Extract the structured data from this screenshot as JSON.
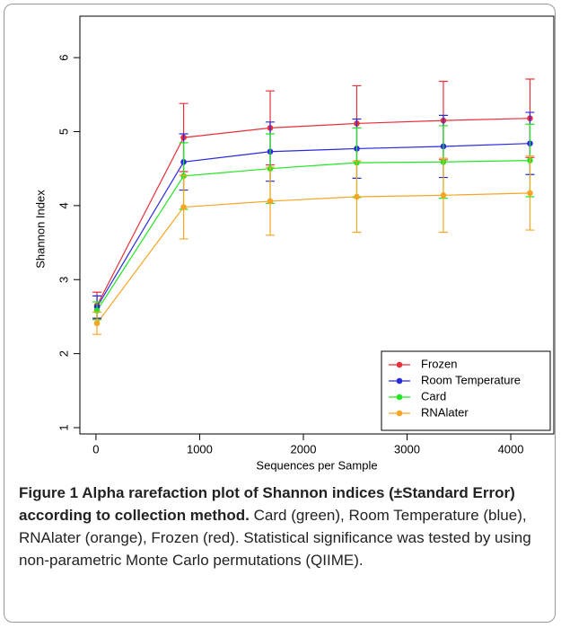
{
  "chart_data": {
    "type": "line",
    "xlabel": "Sequences per Sample",
    "ylabel": "Shannon Index",
    "x": [
      10,
      845,
      1680,
      2515,
      3350,
      4185
    ],
    "xlim": [
      -155,
      4415
    ],
    "xticks": [
      0,
      1000,
      2000,
      3000,
      4000
    ],
    "ylim": [
      0.915,
      6.56
    ],
    "yticks": [
      1,
      2,
      3,
      4,
      5,
      6
    ],
    "legend": "bottom-right",
    "series": [
      {
        "name": "Frozen",
        "color": "#e8303a",
        "values": [
          2.65,
          4.92,
          5.05,
          5.11,
          5.15,
          5.18
        ],
        "errors": [
          0.18,
          0.46,
          0.5,
          0.51,
          0.53,
          0.53
        ]
      },
      {
        "name": "Room Temperature",
        "color": "#2a2adf",
        "values": [
          2.63,
          4.59,
          4.73,
          4.77,
          4.8,
          4.84
        ],
        "errors": [
          0.15,
          0.38,
          0.4,
          0.4,
          0.42,
          0.42
        ]
      },
      {
        "name": "Card",
        "color": "#22e622",
        "values": [
          2.58,
          4.4,
          4.5,
          4.58,
          4.59,
          4.61
        ],
        "errors": [
          0.12,
          0.45,
          0.47,
          0.47,
          0.49,
          0.49
        ]
      },
      {
        "name": "RNAlater",
        "color": "#f5a623",
        "values": [
          2.41,
          3.98,
          4.06,
          4.12,
          4.14,
          4.17
        ],
        "errors": [
          0.15,
          0.43,
          0.46,
          0.48,
          0.5,
          0.5
        ]
      }
    ]
  },
  "caption": {
    "title": "Figure 1 Alpha rarefaction plot of Shannon indices (±Standard Error) according to collection method.",
    "text": "Card (green), Room Temperature (blue), RNAlater (orange), Frozen (red). Statistical significance was tested by using non-parametric Monte Carlo permutations (QIIME)."
  }
}
